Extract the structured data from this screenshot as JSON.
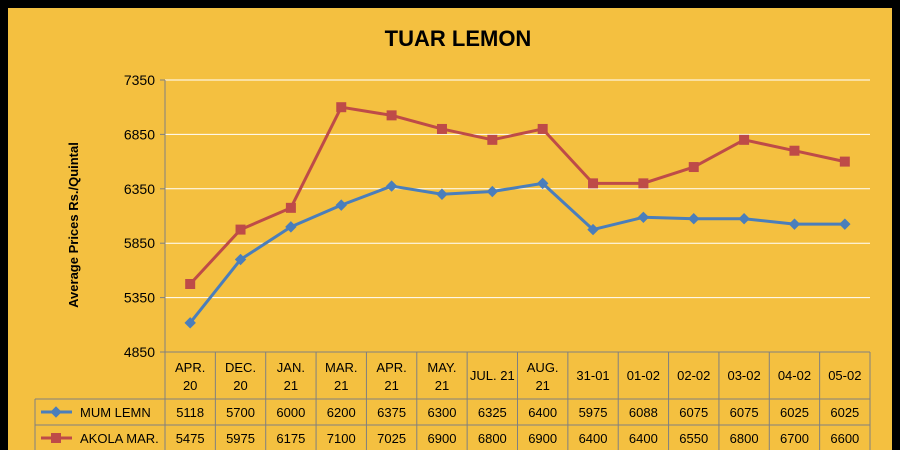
{
  "chart_data": {
    "type": "line",
    "title": "TUAR LEMON",
    "ylabel": "Average Prices  Rs./Quintal",
    "xlabel": "",
    "ylim": [
      4850,
      7350
    ],
    "yticks": [
      "7350",
      "6850",
      "6350",
      "5850",
      "5350",
      "4850"
    ],
    "ytick_values": [
      7350,
      6850,
      6350,
      5850,
      5350,
      4850
    ],
    "grid": true,
    "legend": "in data table",
    "categories": [
      [
        "APR.",
        "20"
      ],
      [
        "DEC.",
        "20"
      ],
      [
        "JAN.",
        "21"
      ],
      [
        "MAR.",
        "21"
      ],
      [
        "APR.",
        "21"
      ],
      [
        "MAY.",
        "21"
      ],
      [
        "JUL. 21"
      ],
      [
        "AUG.",
        "21"
      ],
      [
        "31-01"
      ],
      [
        "01-02"
      ],
      [
        "02-02"
      ],
      [
        "03-02"
      ],
      [
        "04-02"
      ],
      [
        "05-02"
      ]
    ],
    "series": [
      {
        "name": "MUM LEMN",
        "color": "#4a7ebb",
        "marker": "diamond",
        "values": [
          5118,
          5700,
          6000,
          6200,
          6375,
          6300,
          6325,
          6400,
          5975,
          6088,
          6075,
          6075,
          6025,
          6025
        ],
        "labels": [
          "5118",
          "5700",
          "6000",
          "6200",
          "6375",
          "6300",
          "6325",
          "6400",
          "5975",
          "6088",
          "6075",
          "6075",
          "6025",
          "6025"
        ]
      },
      {
        "name": "AKOLA MAR.",
        "color": "#be4b48",
        "marker": "square",
        "values": [
          5475,
          5975,
          6175,
          7100,
          7025,
          6900,
          6800,
          6900,
          6400,
          6400,
          6550,
          6800,
          6700,
          6600
        ],
        "labels": [
          "5475",
          "5975",
          "6175",
          "7100",
          "7025",
          "6900",
          "6800",
          "6900",
          "6400",
          "6400",
          "6550",
          "6800",
          "6700",
          "6600"
        ]
      }
    ]
  },
  "colors": {
    "background": "#f4c040",
    "frame": "#000000",
    "gridline": "#ffffff",
    "axis": "#808080"
  }
}
